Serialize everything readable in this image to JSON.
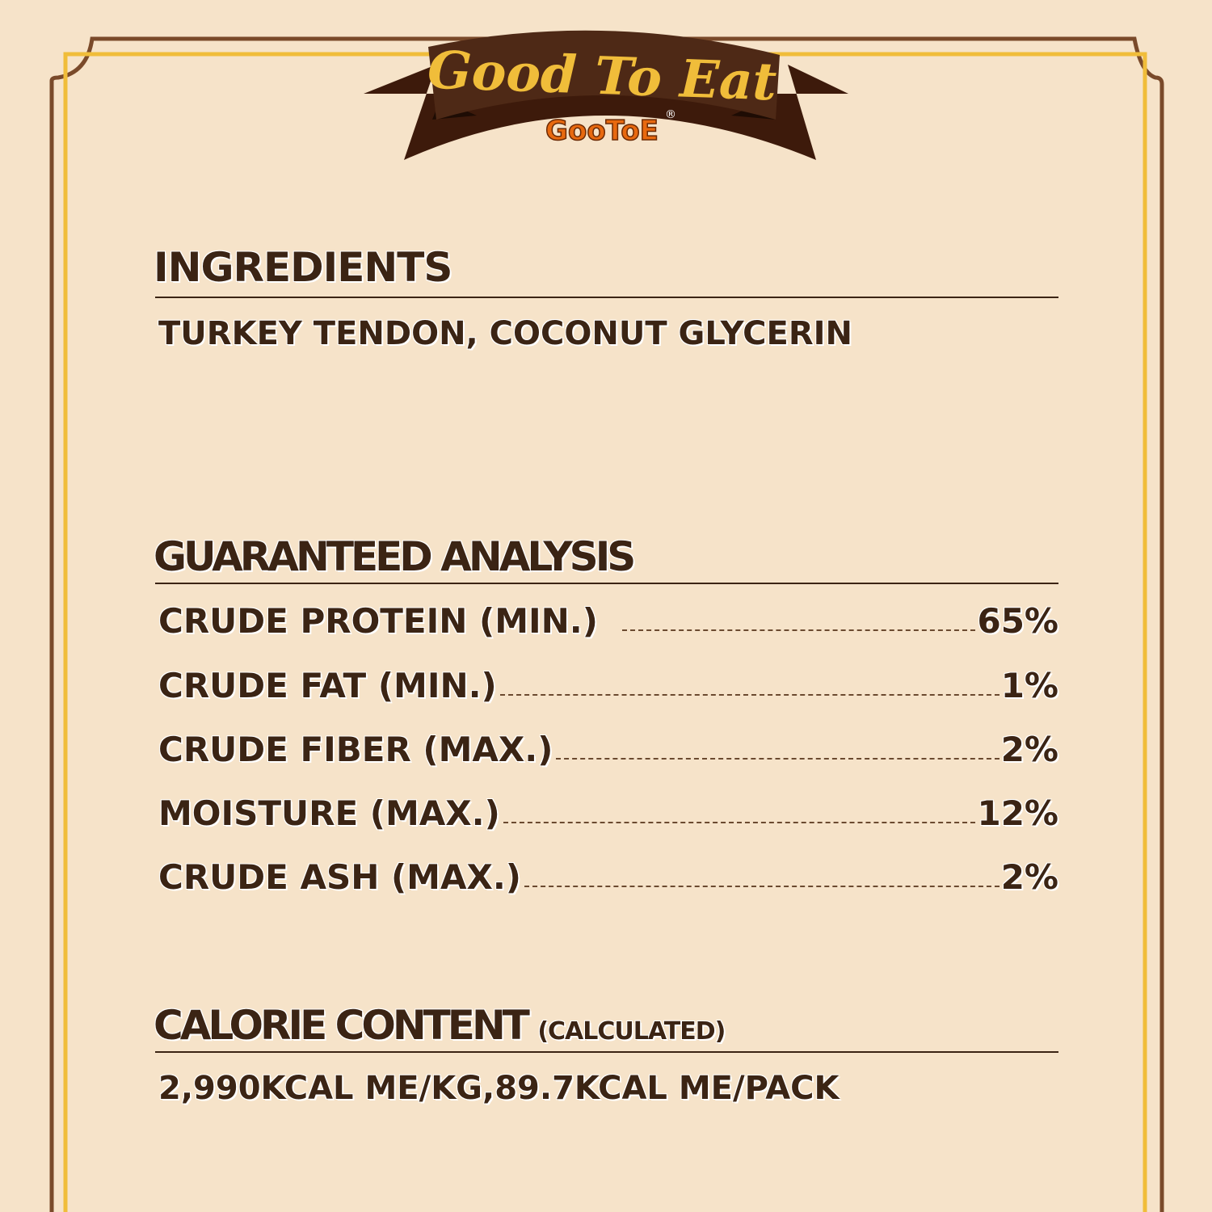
{
  "brand": {
    "slogan": "Good To Eat",
    "logo": "GooToE",
    "registered": "®"
  },
  "colors": {
    "background": "#f6e3c9",
    "brown": "#3b2414",
    "gold": "#f0bd3a",
    "ribbon": "#4e2916",
    "logo_orange": "#e8690f"
  },
  "ingredients": {
    "title": "INGREDIENTS",
    "text": "TURKEY TENDON, COCONUT GLYCERIN"
  },
  "analysis": {
    "title": "GUARANTEED ANALYSIS",
    "rows": [
      {
        "label": "CRUDE PROTEIN (MIN.)",
        "value": "65%"
      },
      {
        "label": "CRUDE FAT (MIN.)",
        "value": "1%"
      },
      {
        "label": "CRUDE FIBER (MAX.)",
        "value": "2%"
      },
      {
        "label": "MOISTURE (MAX.)",
        "value": "12%"
      },
      {
        "label": "CRUDE ASH (MAX.)",
        "value": "2%"
      }
    ]
  },
  "calorie": {
    "title": "CALORIE CONTENT",
    "subtitle": "(CALCULATED)",
    "text": "2,990KCAL ME/KG,89.7KCAL ME/PACK"
  }
}
